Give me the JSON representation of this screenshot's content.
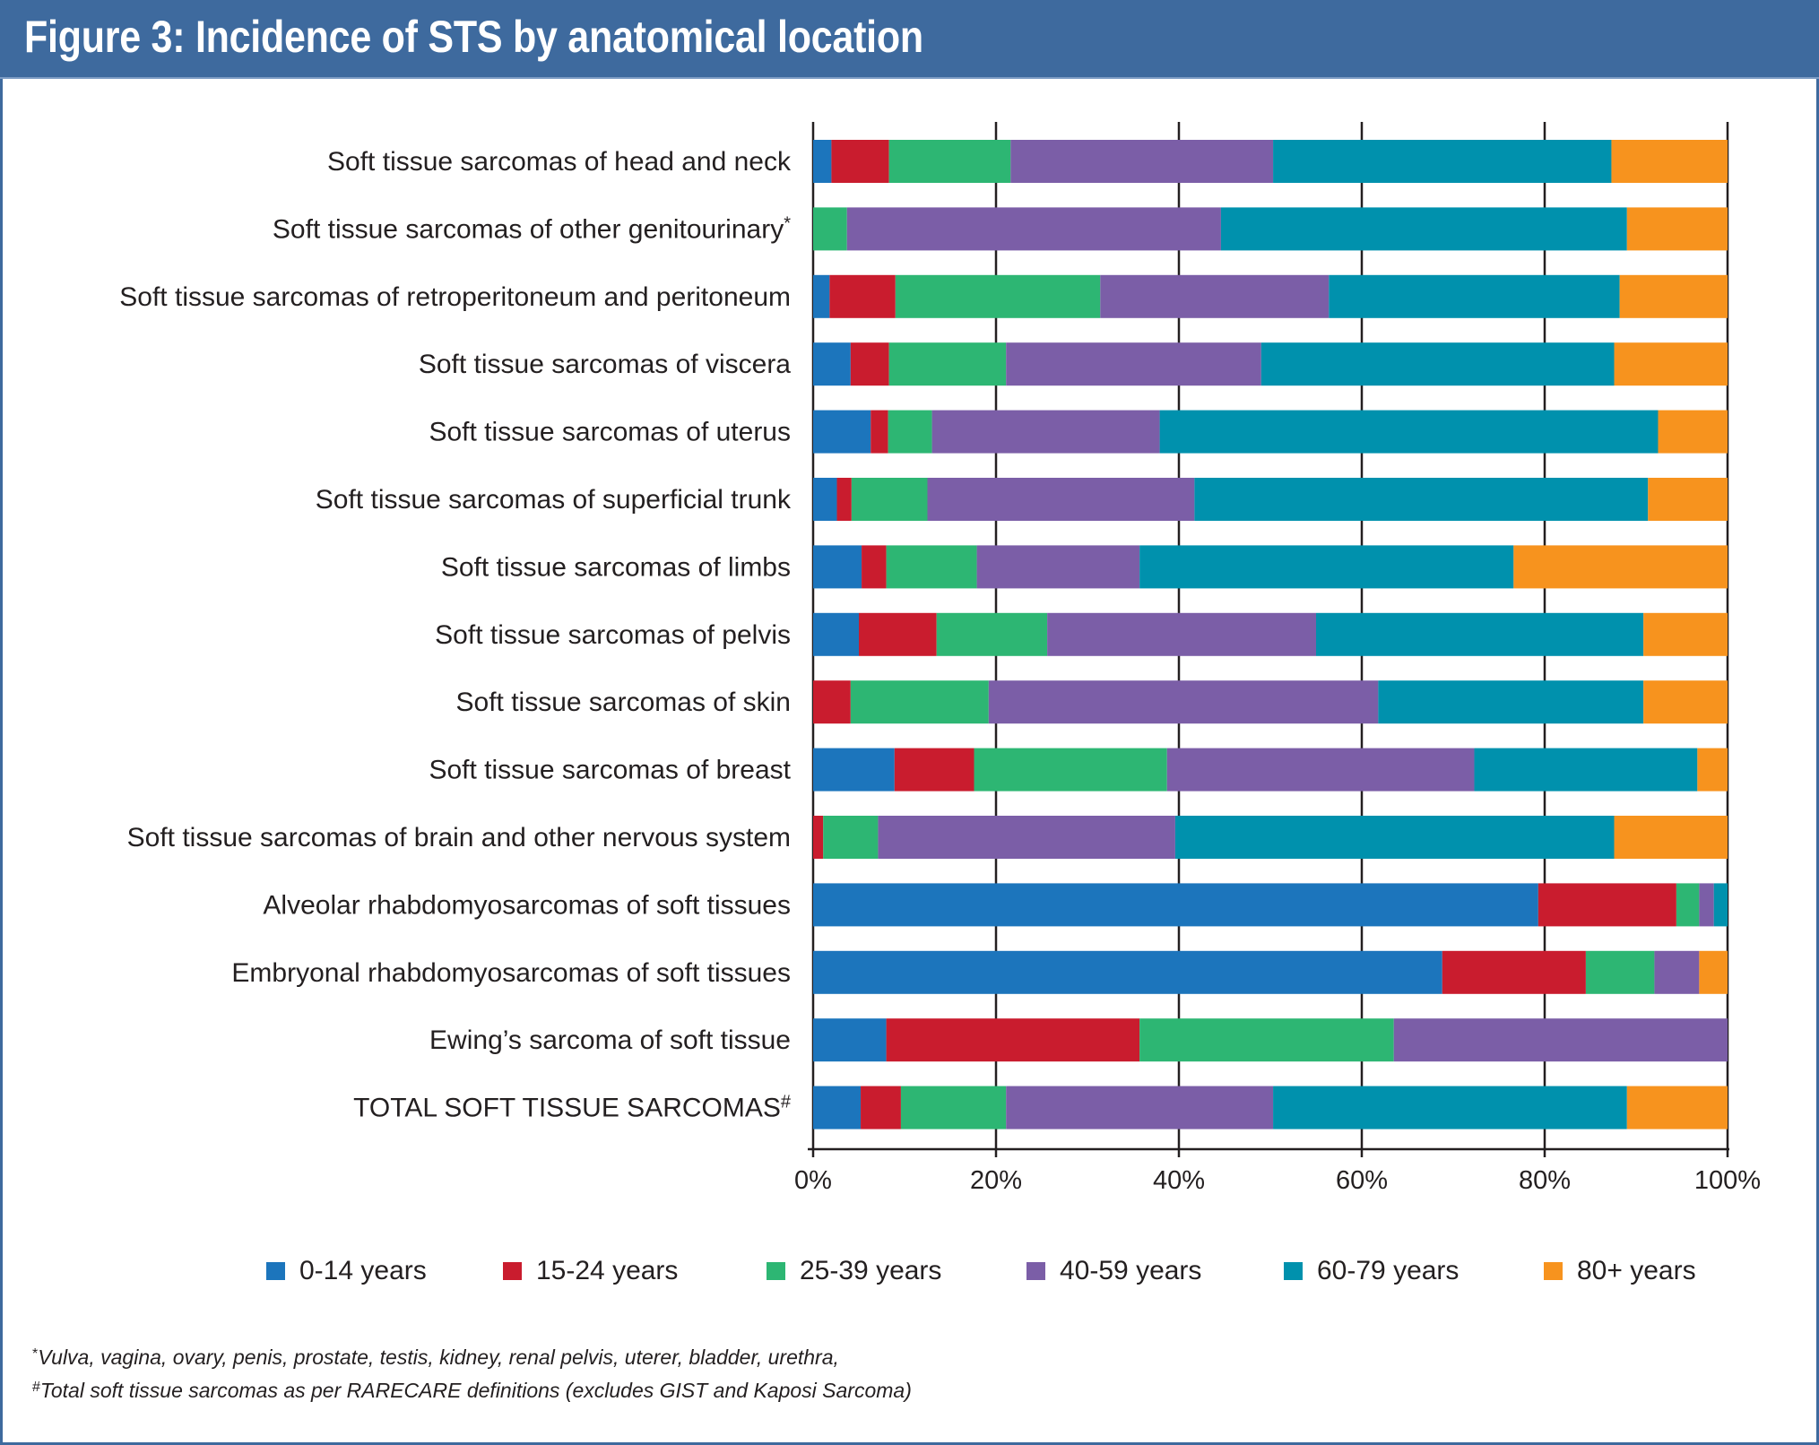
{
  "header": {
    "title": "Figure 3: Incidence of STS by anatomical location"
  },
  "colors": {
    "header_bg": "#3e6a9e",
    "series": [
      "#1c75bc",
      "#c91c2e",
      "#2db673",
      "#7b5ea7",
      "#0091ad",
      "#f7931e"
    ]
  },
  "chart_data": {
    "type": "bar",
    "orientation": "horizontal",
    "stacked": true,
    "normalized": true,
    "title": "Figure 3: Incidence of STS by anatomical location",
    "xlabel": "",
    "ylabel": "",
    "xlim": [
      0,
      100
    ],
    "x_unit": "%",
    "x_ticks": [
      0,
      20,
      40,
      60,
      80,
      100
    ],
    "x_tick_labels": [
      "0%",
      "20%",
      "40%",
      "60%",
      "80%",
      "100%"
    ],
    "grid": "vertical lines at major ticks",
    "legend_position": "bottom",
    "categories": [
      {
        "label": "Soft tissue sarcomas of head and neck",
        "mark": ""
      },
      {
        "label": "Soft tissue sarcomas of other genitourinary",
        "mark": "*"
      },
      {
        "label": "Soft tissue sarcomas of retroperitoneum and peritoneum",
        "mark": ""
      },
      {
        "label": "Soft tissue sarcomas of viscera",
        "mark": ""
      },
      {
        "label": "Soft tissue sarcomas of uterus",
        "mark": ""
      },
      {
        "label": "Soft tissue sarcomas of superficial trunk",
        "mark": ""
      },
      {
        "label": "Soft tissue sarcomas of limbs",
        "mark": ""
      },
      {
        "label": "Soft tissue sarcomas of pelvis",
        "mark": ""
      },
      {
        "label": "Soft tissue sarcomas of skin",
        "mark": ""
      },
      {
        "label": "Soft tissue sarcomas of breast",
        "mark": ""
      },
      {
        "label": "Soft tissue sarcomas of brain and other nervous system",
        "mark": ""
      },
      {
        "label": "Alveolar rhabdomyosarcomas of soft tissues",
        "mark": ""
      },
      {
        "label": "Embryonal rhabdomyosarcomas of soft tissues",
        "mark": ""
      },
      {
        "label": "Ewing’s sarcoma of soft tissue",
        "mark": ""
      },
      {
        "label": "TOTAL SOFT TISSUE SARCOMAS",
        "mark": "#"
      }
    ],
    "series": [
      {
        "name": "0-14 years",
        "color": "#1c75bc",
        "values": [
          2.0,
          0.0,
          1.8,
          4.1,
          6.3,
          2.6,
          5.3,
          5.0,
          0.0,
          8.9,
          0.0,
          79.3,
          68.8,
          8.0,
          5.2
        ]
      },
      {
        "name": "15-24 years",
        "color": "#c91c2e",
        "values": [
          6.3,
          0.0,
          7.2,
          4.2,
          1.9,
          1.6,
          2.7,
          8.5,
          4.1,
          8.7,
          1.1,
          15.1,
          15.7,
          27.7,
          4.4
        ]
      },
      {
        "name": "25-39 years",
        "color": "#2db673",
        "values": [
          13.3,
          3.7,
          22.4,
          12.8,
          4.8,
          8.3,
          9.9,
          12.1,
          15.1,
          21.1,
          6.0,
          2.5,
          7.5,
          27.8,
          11.5
        ]
      },
      {
        "name": "40-59 years",
        "color": "#7b5ea7",
        "values": [
          28.7,
          40.9,
          25.0,
          27.9,
          24.9,
          29.2,
          17.8,
          29.4,
          42.6,
          33.6,
          32.5,
          1.6,
          4.9,
          36.5,
          29.2
        ]
      },
      {
        "name": "60-79 years",
        "color": "#0091ad",
        "values": [
          37.0,
          44.4,
          31.8,
          38.6,
          54.5,
          49.6,
          40.9,
          35.8,
          29.0,
          24.4,
          48.0,
          1.5,
          0.0,
          0.0,
          38.7
        ]
      },
      {
        "name": "80+ years",
        "color": "#f7931e",
        "values": [
          12.7,
          11.0,
          11.8,
          12.4,
          7.6,
          8.7,
          23.4,
          9.2,
          9.2,
          3.3,
          12.4,
          0.0,
          3.1,
          0.0,
          11.0
        ]
      }
    ]
  },
  "legend": [
    {
      "label": "0-14 years",
      "color": "#1c75bc"
    },
    {
      "label": "15-24 years",
      "color": "#c91c2e"
    },
    {
      "label": "25-39 years",
      "color": "#2db673"
    },
    {
      "label": "40-59 years",
      "color": "#7b5ea7"
    },
    {
      "label": "60-79 years",
      "color": "#0091ad"
    },
    {
      "label": "80+ years",
      "color": "#f7931e"
    }
  ],
  "footnotes": [
    {
      "mark": "*",
      "text": "Vulva, vagina, ovary, penis, prostate, testis, kidney, renal pelvis, uterer, bladder, urethra,"
    },
    {
      "mark": "#",
      "text": "Total soft tissue sarcomas as per RARECARE definitions (excludes GIST and Kaposi Sarcoma)"
    }
  ]
}
